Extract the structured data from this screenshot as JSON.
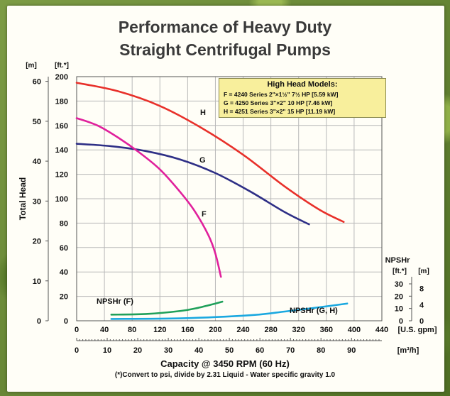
{
  "title_line1": "Performance of Heavy Duty",
  "title_line2": "Straight Centrifugal Pumps",
  "legend": {
    "title": "High Head Models:",
    "lines": [
      "F = 4240 Series 2\"×1½\" 7½ HP [5.59 kW]",
      "G = 4250 Series 3\"×2\" 10 HP [7.46 kW]",
      "H = 4251 Series 3\"×2\" 15 HP [11.19 kW]"
    ]
  },
  "footer": {
    "capacity_label": "Capacity @ 3450 RPM (60 Hz)",
    "note": "(*)Convert to psi, divide by 2.31     Liquid - Water specific gravity 1.0"
  },
  "colors": {
    "H": "#e8302a",
    "G": "#2e2f86",
    "F": "#e0209c",
    "NPSHr_F": "#1fa05a",
    "NPSHr_GH": "#1aa8e0"
  },
  "chart_data": {
    "type": "line",
    "title": "Performance of Heavy Duty Straight Centrifugal Pumps",
    "ylabel": "Total Head",
    "xlabel": "Capacity @ 3450 RPM (60 Hz)",
    "x_unit_label": "[U.S. gpm]",
    "x_unit_label_metric": "[m³/h]",
    "y_unit_label_ft": "[ft.*]",
    "y_unit_label_m": "[m]",
    "xlim": [
      0,
      440
    ],
    "ylim_ft": [
      0,
      200
    ],
    "x_ticks": [
      "0",
      "40",
      "80",
      "120",
      "160",
      "200",
      "240",
      "280",
      "320",
      "360",
      "400",
      "440"
    ],
    "y_ticks_ft": [
      "0",
      "20",
      "40",
      "60",
      "80",
      "100",
      "120",
      "140",
      "160",
      "180",
      "200"
    ],
    "y_ticks_m": [
      "0",
      "10",
      "20",
      "30",
      "40",
      "50",
      "60"
    ],
    "x_ticks_metric": [
      "0",
      "10",
      "20",
      "30",
      "40",
      "50",
      "60",
      "70",
      "80",
      "90"
    ],
    "npshr_axis_title": "NPSHr",
    "npshr_ft_ticks": [
      "0",
      "10",
      "20",
      "30"
    ],
    "npshr_m_ticks": [
      "0",
      "4",
      "8"
    ],
    "npshr_unit_ft": "[ft.*]",
    "npshr_unit_m": "[m]",
    "grid": true,
    "series": [
      {
        "name": "H",
        "x": [
          0,
          60,
          120,
          180,
          240,
          300,
          350,
          385
        ],
        "y": [
          195,
          188,
          176,
          158,
          136,
          110,
          91,
          81
        ]
      },
      {
        "name": "G",
        "x": [
          0,
          50,
          100,
          150,
          200,
          250,
          300,
          335
        ],
        "y": [
          145,
          143,
          139,
          132,
          121,
          106,
          89,
          79
        ]
      },
      {
        "name": "F",
        "x": [
          0,
          30,
          60,
          90,
          120,
          150,
          170,
          190,
          200,
          208
        ],
        "y": [
          166,
          160,
          150,
          138,
          124,
          105,
          90,
          70,
          55,
          36
        ]
      },
      {
        "name": "NPSHr (F)",
        "x": [
          50,
          100,
          150,
          175,
          200,
          210
        ],
        "y": [
          5,
          5.5,
          8,
          10.5,
          14,
          15.5
        ]
      },
      {
        "name": "NPSHr (G, H)",
        "x": [
          50,
          150,
          250,
          300,
          350,
          390
        ],
        "y": [
          1.5,
          2,
          4.5,
          7.5,
          11,
          14
        ]
      }
    ],
    "npshr_ft_full_scale": 30,
    "npshr_ft_full_scale_pos": 30
  }
}
